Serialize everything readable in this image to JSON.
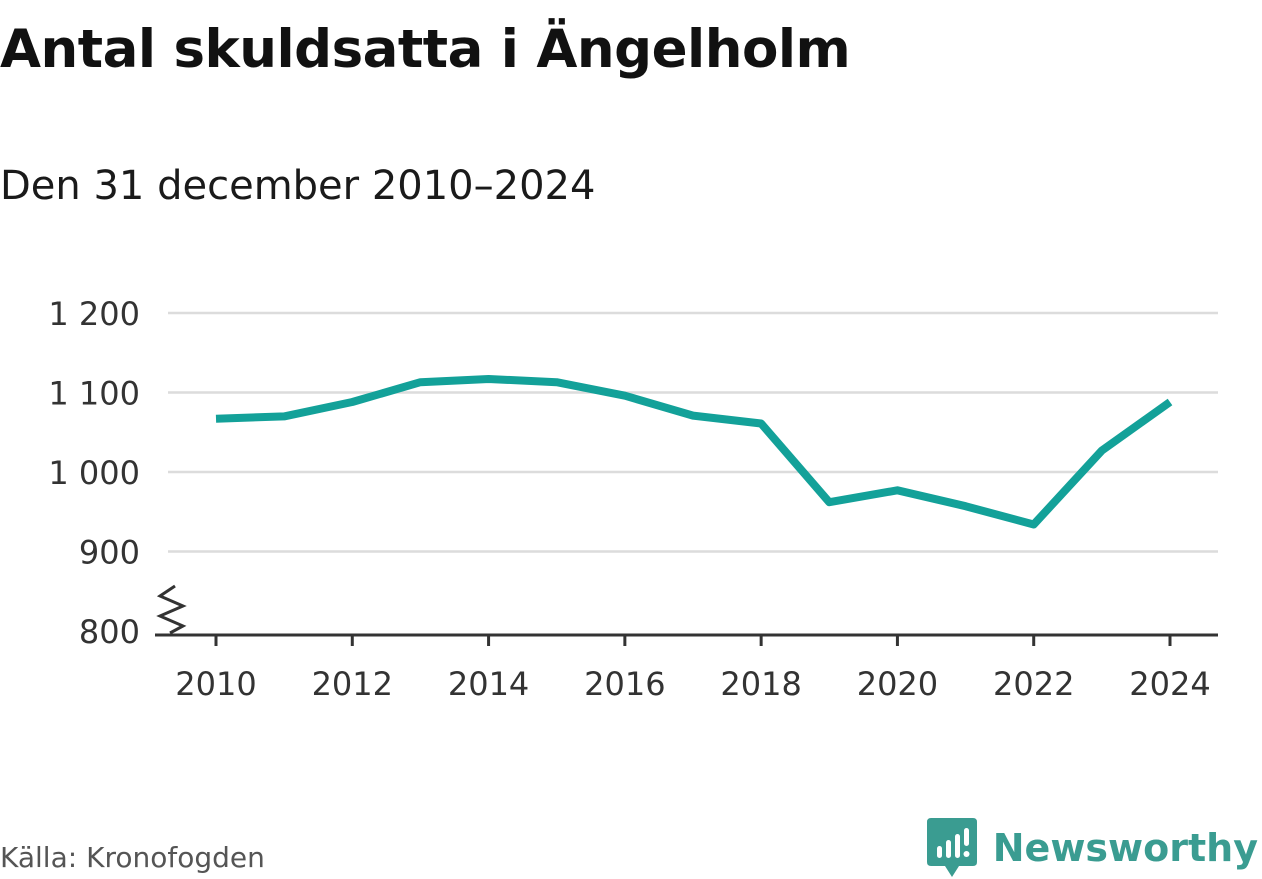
{
  "title": "Antal skuldsatta i Ängelholm",
  "subtitle": "Den 31 december 2010–2024",
  "source": "Källa: Kronofogden",
  "brand": {
    "name": "Newsworthy",
    "icon": "chart-bubble-icon",
    "color": "#3a9c91"
  },
  "colors": {
    "line": "#13a199",
    "grid": "#dcdcdc",
    "axis": "#333333",
    "text": "#333333"
  },
  "chart_data": {
    "type": "line",
    "title": "Antal skuldsatta i Ängelholm",
    "subtitle": "Den 31 december 2010–2024",
    "xlabel": "",
    "ylabel": "",
    "x": [
      2010,
      2011,
      2012,
      2013,
      2014,
      2015,
      2016,
      2017,
      2018,
      2019,
      2020,
      2021,
      2022,
      2023,
      2024
    ],
    "series": [
      {
        "values": [
          1067,
          1070,
          1088,
          1113,
          1117,
          1113,
          1096,
          1071,
          1061,
          962,
          977,
          957,
          934,
          1027,
          1088
        ]
      }
    ],
    "ylim": [
      800,
      1200
    ],
    "y_ticks": [
      800,
      900,
      1000,
      1100,
      1200
    ],
    "y_tick_labels": [
      "800",
      "900",
      "1 000",
      "1 100",
      "1 200"
    ],
    "x_ticks": [
      2010,
      2012,
      2014,
      2016,
      2018,
      2020,
      2022,
      2024
    ],
    "x_tick_labels": [
      "2010",
      "2012",
      "2014",
      "2016",
      "2018",
      "2020",
      "2022",
      "2024"
    ],
    "y_axis_break": true,
    "grid": true,
    "legend": "none"
  }
}
